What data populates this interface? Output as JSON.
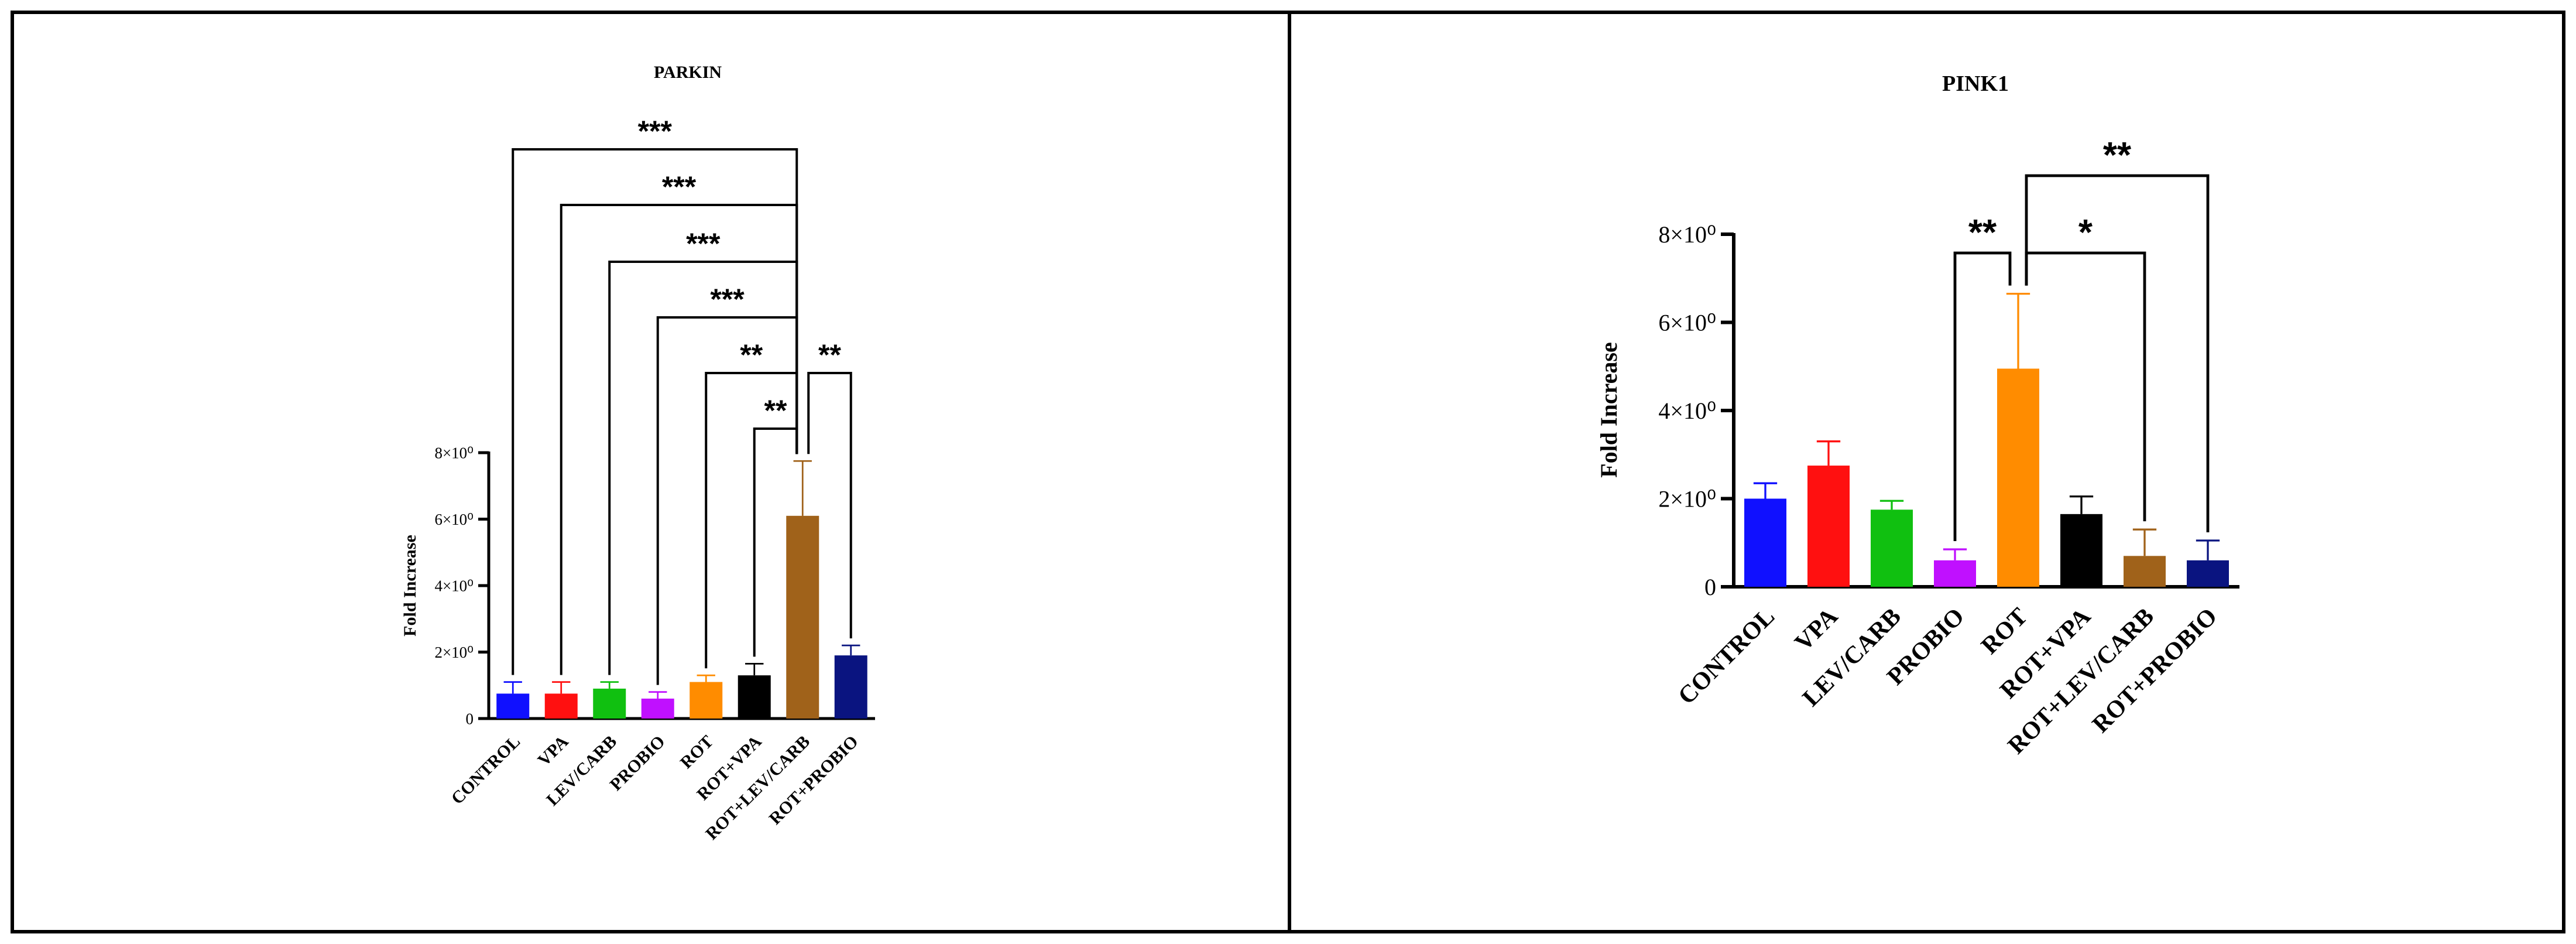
{
  "chart_data": [
    {
      "type": "bar",
      "title": "PARKIN",
      "ylabel": "Fold Increase",
      "xlabel": "",
      "ylim": [
        0,
        8
      ],
      "yticks": [
        "0",
        "2×10⁰",
        "4×10⁰",
        "6×10⁰",
        "8×10⁰"
      ],
      "categories": [
        "CONTROL",
        "VPA",
        "LEV/CARB",
        "PROBIO",
        "ROT",
        "ROT+VPA",
        "ROT+LEV/CARB",
        "ROT+PROBIO"
      ],
      "values": [
        0.75,
        0.75,
        0.9,
        0.6,
        1.1,
        1.3,
        6.1,
        1.9
      ],
      "errors": [
        0.35,
        0.35,
        0.2,
        0.2,
        0.2,
        0.35,
        1.65,
        0.3
      ],
      "colors": [
        "#1010ff",
        "#ff1010",
        "#10c010",
        "#c010ff",
        "#ff8c00",
        "#000000",
        "#a0621a",
        "#0a1480"
      ],
      "grid": false,
      "significance": [
        {
          "from": 0,
          "to": 6,
          "label": "***"
        },
        {
          "from": 1,
          "to": 6,
          "label": "***"
        },
        {
          "from": 2,
          "to": 6,
          "label": "***"
        },
        {
          "from": 3,
          "to": 6,
          "label": "***"
        },
        {
          "from": 4,
          "to": 6,
          "label": "**"
        },
        {
          "from": 5,
          "to": 6,
          "label": "**"
        },
        {
          "from": 6,
          "to": 7,
          "label": "**"
        }
      ]
    },
    {
      "type": "bar",
      "title": "PINK1",
      "ylabel": "Fold Increase",
      "xlabel": "",
      "ylim": [
        0,
        8
      ],
      "yticks": [
        "0",
        "2×10⁰",
        "4×10⁰",
        "6×10⁰",
        "8×10⁰"
      ],
      "categories": [
        "CONTROL",
        "VPA",
        "LEV/CARB",
        "PROBIO",
        "ROT",
        "ROT+VPA",
        "ROT+LEV/CARB",
        "ROT+PROBIO"
      ],
      "values": [
        2.0,
        2.75,
        1.75,
        0.6,
        4.95,
        1.65,
        0.7,
        0.6
      ],
      "errors": [
        0.35,
        0.55,
        0.2,
        0.25,
        1.7,
        0.4,
        0.6,
        0.45
      ],
      "colors": [
        "#1010ff",
        "#ff1010",
        "#10c010",
        "#c010ff",
        "#ff8c00",
        "#000000",
        "#a0621a",
        "#0a1480"
      ],
      "grid": false,
      "significance": [
        {
          "from": 3,
          "to": 4,
          "label": "**"
        },
        {
          "from": 4,
          "to": 6,
          "label": "*"
        },
        {
          "from": 4,
          "to": 7,
          "label": "**"
        }
      ]
    }
  ]
}
